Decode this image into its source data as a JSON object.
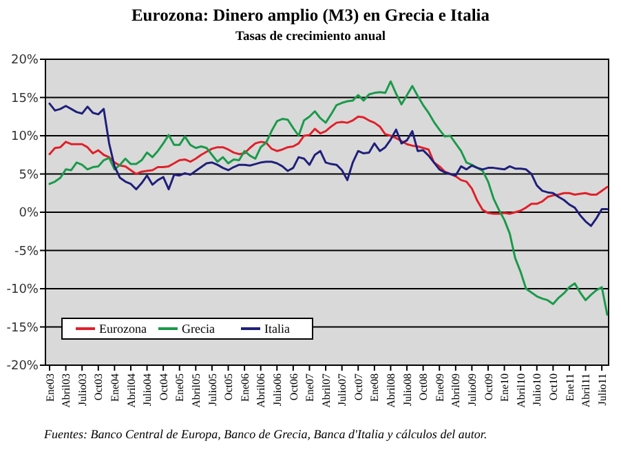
{
  "chart_data": {
    "type": "line",
    "title": "Eurozona: Dinero amplio (M3) en Grecia e Italia",
    "subtitle": "Tasas de crecimiento anual",
    "annotations": [
      "Fuentes: Banco Central de Europa, Banco de Grecia, Banca d'Italia y cálculos del autor."
    ],
    "categories": [
      "Ene03",
      null,
      null,
      "Abril03",
      null,
      null,
      "Julio03",
      null,
      null,
      "Oct03",
      null,
      null,
      "Ene04",
      null,
      null,
      "Abril04",
      null,
      null,
      "Julio04",
      null,
      null,
      "Oct04",
      null,
      null,
      "Ene05",
      null,
      null,
      "Abril05",
      null,
      null,
      "Julio05",
      null,
      null,
      "Oct05",
      null,
      null,
      "Ene06",
      null,
      null,
      "Abril06",
      null,
      null,
      "Julio06",
      null,
      null,
      "Oct06",
      null,
      null,
      "Ene07",
      null,
      null,
      "Abril07",
      null,
      null,
      "Julio07",
      null,
      null,
      "Oct07",
      null,
      null,
      "Ene08",
      null,
      null,
      "Abril08",
      null,
      null,
      "Julio08",
      null,
      null,
      "Oct08",
      null,
      null,
      "Ene09",
      null,
      null,
      "Abril09",
      null,
      null,
      "Julio09",
      null,
      null,
      "Oct09",
      null,
      null,
      "Ene10",
      null,
      null,
      "Abril10",
      null,
      null,
      "Julio10",
      null,
      null,
      "Oct10",
      null,
      null,
      "Ene11",
      null,
      null,
      "Abril11",
      null,
      null,
      "Julio11",
      null
    ],
    "series": [
      {
        "name": "Eurozona",
        "color": "#e0202a",
        "values": [
          7.6,
          8.4,
          8.5,
          9.2,
          8.9,
          8.9,
          8.9,
          8.5,
          7.7,
          8.1,
          7.5,
          7.2,
          6.5,
          6.1,
          6.0,
          5.5,
          5.0,
          5.3,
          5.4,
          5.5,
          5.9,
          5.9,
          6.0,
          6.4,
          6.8,
          6.9,
          6.6,
          7.0,
          7.5,
          7.9,
          8.3,
          8.5,
          8.5,
          8.2,
          7.8,
          7.6,
          7.7,
          8.4,
          9.0,
          9.2,
          9.1,
          8.3,
          8.0,
          8.2,
          8.5,
          8.6,
          9.0,
          10.0,
          10.1,
          10.9,
          10.3,
          10.6,
          11.2,
          11.7,
          11.8,
          11.7,
          12.0,
          12.5,
          12.4,
          12.0,
          11.7,
          11.2,
          10.2,
          10.0,
          9.7,
          9.3,
          8.9,
          8.7,
          8.6,
          8.4,
          8.2,
          6.5,
          6.0,
          5.3,
          5.0,
          4.7,
          4.2,
          4.0,
          3.1,
          1.5,
          0.3,
          -0.1,
          -0.2,
          -0.2,
          -0.1,
          -0.2,
          0.0,
          0.2,
          0.6,
          1.1,
          1.1,
          1.4,
          2.0,
          2.2,
          2.3,
          2.5,
          2.5,
          2.3,
          2.4,
          2.5,
          2.3,
          2.3,
          2.8,
          3.3
        ]
      },
      {
        "name": "Grecia",
        "color": "#1a9a4a",
        "values": [
          3.7,
          4.0,
          4.5,
          5.6,
          5.5,
          6.5,
          6.2,
          5.6,
          5.9,
          6.0,
          6.8,
          7.1,
          5.6,
          6.2,
          7.0,
          6.3,
          6.3,
          6.8,
          7.8,
          7.2,
          8.0,
          9.0,
          10.1,
          8.8,
          8.8,
          9.9,
          8.8,
          8.4,
          8.6,
          8.4,
          7.5,
          6.6,
          7.2,
          6.4,
          6.9,
          6.8,
          8.0,
          7.4,
          7.0,
          8.5,
          9.1,
          10.6,
          11.9,
          12.2,
          12.1,
          11.0,
          10.0,
          12.0,
          12.5,
          13.2,
          12.3,
          11.7,
          12.8,
          14.0,
          14.3,
          14.5,
          14.6,
          15.3,
          14.6,
          15.4,
          15.6,
          15.7,
          15.6,
          17.1,
          15.5,
          14.1,
          15.3,
          16.5,
          15.2,
          14.0,
          13.0,
          11.8,
          10.8,
          9.9,
          10.0,
          9.0,
          8.0,
          6.5,
          6.2,
          5.8,
          5.4,
          4.0,
          1.8,
          0.3,
          -1.0,
          -2.8,
          -6.0,
          -7.8,
          -10.0,
          -10.5,
          -11.0,
          -11.3,
          -11.5,
          -12.0,
          -11.2,
          -10.6,
          -9.8,
          -9.3,
          -10.5,
          -11.5,
          -10.8,
          -10.2,
          -9.8,
          -13.4
        ]
      },
      {
        "name": "Italia",
        "color": "#1f1f7a",
        "values": [
          14.2,
          13.3,
          13.5,
          13.9,
          13.5,
          13.1,
          12.9,
          13.8,
          13.0,
          12.8,
          13.5,
          9.0,
          6.0,
          4.5,
          4.0,
          3.7,
          3.0,
          3.8,
          4.8,
          3.6,
          4.2,
          4.6,
          3.0,
          4.9,
          4.8,
          5.1,
          4.9,
          5.4,
          5.9,
          6.4,
          6.5,
          6.2,
          5.8,
          5.5,
          5.9,
          6.2,
          6.2,
          6.1,
          6.3,
          6.5,
          6.6,
          6.6,
          6.4,
          6.0,
          5.4,
          5.8,
          7.2,
          7.0,
          6.2,
          7.5,
          8.0,
          6.5,
          6.3,
          6.2,
          5.5,
          4.2,
          6.5,
          8.0,
          7.7,
          7.8,
          9.0,
          8.0,
          8.5,
          9.5,
          10.8,
          9.0,
          9.4,
          10.6,
          8.0,
          8.1,
          7.4,
          6.5,
          5.6,
          5.2,
          5.0,
          4.8,
          6.0,
          5.6,
          6.1,
          5.8,
          5.6,
          5.8,
          5.8,
          5.7,
          5.6,
          6.0,
          5.7,
          5.7,
          5.6,
          5.0,
          3.5,
          2.8,
          2.6,
          2.5,
          2.0,
          1.6,
          1.0,
          0.6,
          -0.4,
          -1.2,
          -1.8,
          -0.8,
          0.4,
          0.4
        ]
      }
    ],
    "ylim": [
      -20,
      20
    ],
    "yticks": [
      {
        "value": -20,
        "label": "-20%"
      },
      {
        "value": -15,
        "label": "-15%"
      },
      {
        "value": -10,
        "label": "-10%"
      },
      {
        "value": -5,
        "label": "-5%"
      },
      {
        "value": 0,
        "label": "0%"
      },
      {
        "value": 5,
        "label": "5%"
      },
      {
        "value": 10,
        "label": "10%"
      },
      {
        "value": 15,
        "label": "15%"
      },
      {
        "value": 20,
        "label": "20%"
      }
    ],
    "grid": "y",
    "legend": "bottom left",
    "marker": "none",
    "line_style": "solid"
  }
}
